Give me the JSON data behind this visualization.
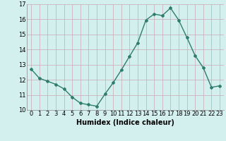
{
  "x": [
    0,
    1,
    2,
    3,
    4,
    5,
    6,
    7,
    8,
    9,
    10,
    11,
    12,
    13,
    14,
    15,
    16,
    17,
    18,
    19,
    20,
    21,
    22,
    23
  ],
  "y": [
    12.7,
    12.1,
    11.9,
    11.7,
    11.4,
    10.85,
    10.45,
    10.35,
    10.25,
    11.05,
    11.8,
    12.65,
    13.55,
    14.45,
    15.95,
    16.35,
    16.25,
    16.75,
    15.95,
    14.8,
    13.6,
    12.8,
    11.5,
    11.6
  ],
  "line_color": "#2e7d6e",
  "marker": "D",
  "marker_size": 2.0,
  "line_width": 1.0,
  "bg_color": "#d4f0ee",
  "grid_color": "#c9a8b2",
  "xlabel": "Humidex (Indice chaleur)",
  "xlabel_fontsize": 7,
  "tick_fontsize": 6,
  "ylim": [
    10,
    17
  ],
  "yticks": [
    10,
    11,
    12,
    13,
    14,
    15,
    16,
    17
  ],
  "xticks": [
    0,
    1,
    2,
    3,
    4,
    5,
    6,
    7,
    8,
    9,
    10,
    11,
    12,
    13,
    14,
    15,
    16,
    17,
    18,
    19,
    20,
    21,
    22,
    23
  ],
  "xlim": [
    -0.5,
    23.5
  ]
}
